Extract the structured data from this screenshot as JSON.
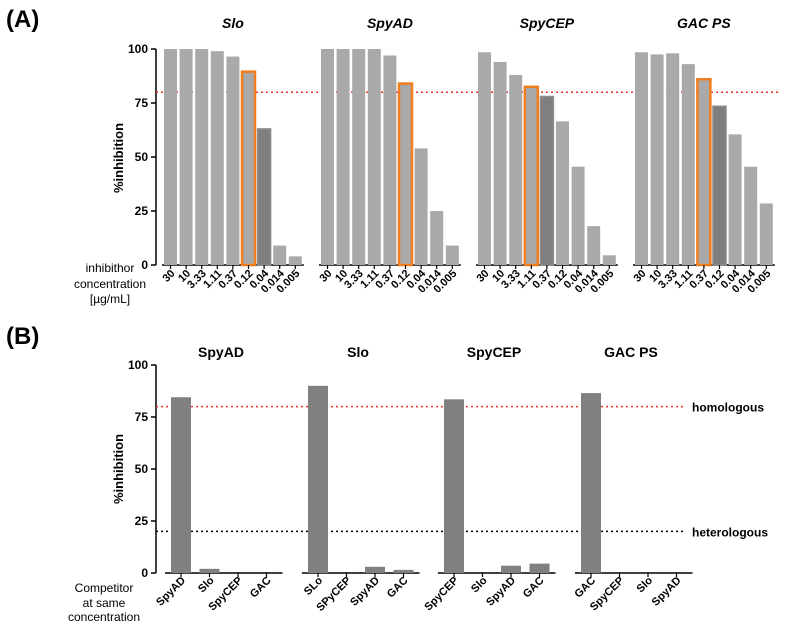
{
  "chart_data": [
    {
      "type": "bar",
      "panel_label": "(A)",
      "ylabel": "%inhibition",
      "ylim": [
        0,
        100
      ],
      "yticks": [
        "0",
        "25",
        "50",
        "75",
        "100"
      ],
      "threshold": 80,
      "xaxis_caption": [
        "inhibithor",
        "concentration",
        "[µg/mL]"
      ],
      "concentration_labels": [
        "30",
        "10",
        "3.33",
        "1.11",
        "0.37",
        "0.12",
        "0.04",
        "0.014",
        "0.005"
      ],
      "groups": [
        {
          "name": "Slo",
          "values": [
            100,
            100,
            100,
            99,
            96.5,
            89.5,
            63,
            9,
            4
          ],
          "highlight_orange": 5,
          "highlight_dark": 6
        },
        {
          "name": "SpyAD",
          "values": [
            100,
            100,
            100,
            100,
            97,
            84,
            54,
            25,
            9
          ],
          "highlight_orange": 5,
          "highlight_dark": null
        },
        {
          "name": "SpyCEP",
          "values": [
            98.5,
            94,
            88,
            82.5,
            78,
            66.5,
            45.5,
            18,
            4.5
          ],
          "highlight_orange": 3,
          "highlight_dark": 4
        },
        {
          "name": "GAC PS",
          "values": [
            98.5,
            97.5,
            98,
            93,
            86,
            73.5,
            60.5,
            45.5,
            28.5
          ],
          "highlight_orange": 4,
          "highlight_dark": 5
        }
      ]
    },
    {
      "type": "bar",
      "panel_label": "(B)",
      "ylabel": "%inhibition",
      "ylim": [
        0,
        100
      ],
      "yticks": [
        "0",
        "25",
        "50",
        "75",
        "100"
      ],
      "xaxis_caption": [
        "Competitor",
        "at same",
        "concentration"
      ],
      "homologous_level": 80,
      "homologous_label": "homologous",
      "heterologous_level": 20,
      "heterologous_label": "heterologous",
      "groups": [
        {
          "name": "SpyAD",
          "categories": [
            "SpyAD",
            "Slo",
            "SpyCEP",
            "GAC"
          ],
          "values": [
            84.5,
            2,
            0,
            0
          ]
        },
        {
          "name": "Slo",
          "categories": [
            "SLo",
            "SPyCEP",
            "SpyAD",
            "GAC"
          ],
          "values": [
            90,
            0,
            3,
            1.5
          ]
        },
        {
          "name": "SpyCEP",
          "categories": [
            "SpyCEP",
            "Slo",
            "SpyAD",
            "GAC"
          ],
          "values": [
            83.5,
            0,
            3.5,
            4.5
          ]
        },
        {
          "name": "GAC PS",
          "categories": [
            "GAC",
            "SpyCEP",
            "Slo",
            "SpyAD"
          ],
          "values": [
            86.5,
            0,
            0,
            0
          ]
        }
      ]
    }
  ],
  "colors": {
    "bar_light": "#a9a9a9",
    "bar_dark": "#7f7f7f",
    "bar_b": "#808080",
    "orange": "#f07d1e",
    "threshold_red": "#e8362e",
    "text": "#000000"
  }
}
